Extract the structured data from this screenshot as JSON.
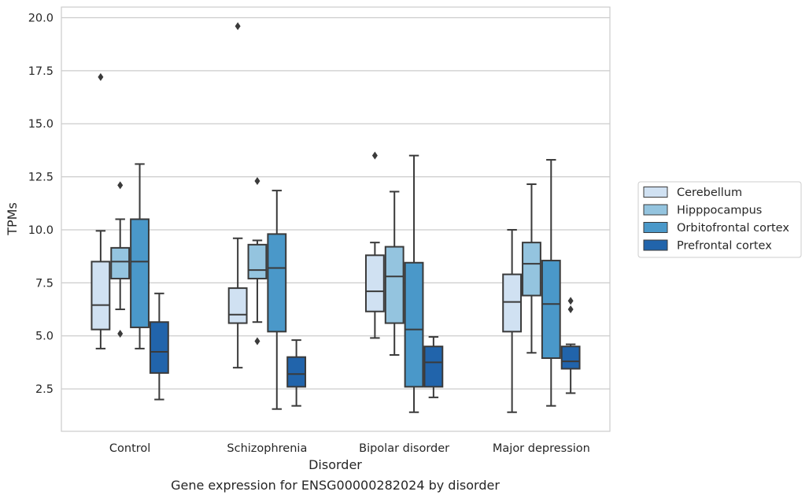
{
  "chart_data": {
    "type": "box",
    "caption": "Gene expression for ENSG00000282024 by disorder",
    "xlabel": "Disorder",
    "ylabel": "TPMs",
    "ylim": [
      0.5,
      20.5
    ],
    "yticks": [
      "2.5",
      "5.0",
      "7.5",
      "10.0",
      "12.5",
      "15.0",
      "17.5",
      "20.0"
    ],
    "grid": true,
    "legend_position": "right",
    "categories": [
      "Control",
      "Schizophrenia",
      "Bipolar disorder",
      "Major depression"
    ],
    "series": [
      {
        "name": "Cerebellum",
        "color": "#d0e1f2",
        "boxes": [
          {
            "min": 4.4,
            "q1": 5.3,
            "median": 6.45,
            "q3": 8.5,
            "max": 9.95,
            "outliers": [
              17.2
            ]
          },
          {
            "min": 3.5,
            "q1": 5.6,
            "median": 6.0,
            "q3": 7.25,
            "max": 9.6,
            "outliers": [
              19.6
            ]
          },
          {
            "min": 4.9,
            "q1": 6.15,
            "median": 7.1,
            "q3": 8.8,
            "max": 9.4,
            "outliers": [
              13.5
            ]
          },
          {
            "min": 1.4,
            "q1": 5.2,
            "median": 6.6,
            "q3": 7.9,
            "max": 10.0,
            "outliers": []
          }
        ]
      },
      {
        "name": "Hipppocampus",
        "color": "#94c4df",
        "boxes": [
          {
            "min": 6.25,
            "q1": 7.7,
            "median": 8.5,
            "q3": 9.15,
            "max": 10.5,
            "outliers": [
              12.1,
              5.1
            ]
          },
          {
            "min": 5.65,
            "q1": 7.7,
            "median": 8.1,
            "q3": 9.3,
            "max": 9.5,
            "outliers": [
              12.3,
              4.75
            ]
          },
          {
            "min": 4.1,
            "q1": 5.6,
            "median": 7.8,
            "q3": 9.2,
            "max": 11.8,
            "outliers": []
          },
          {
            "min": 4.2,
            "q1": 6.9,
            "median": 8.4,
            "q3": 9.4,
            "max": 12.15,
            "outliers": []
          }
        ]
      },
      {
        "name": "Orbitofrontal cortex",
        "color": "#4a98c9",
        "boxes": [
          {
            "min": 4.4,
            "q1": 5.4,
            "median": 8.5,
            "q3": 10.5,
            "max": 13.1,
            "outliers": []
          },
          {
            "min": 1.55,
            "q1": 5.2,
            "median": 8.2,
            "q3": 9.8,
            "max": 11.85,
            "outliers": []
          },
          {
            "min": 1.4,
            "q1": 2.6,
            "median": 5.3,
            "q3": 8.45,
            "max": 13.5,
            "outliers": []
          },
          {
            "min": 1.7,
            "q1": 3.95,
            "median": 6.5,
            "q3": 8.55,
            "max": 13.3,
            "outliers": []
          }
        ]
      },
      {
        "name": "Prefrontal cortex",
        "color": "#2164ab",
        "boxes": [
          {
            "min": 2.0,
            "q1": 3.25,
            "median": 4.25,
            "q3": 5.65,
            "max": 7.0,
            "outliers": []
          },
          {
            "min": 1.7,
            "q1": 2.6,
            "median": 3.2,
            "q3": 4.0,
            "max": 4.8,
            "outliers": []
          },
          {
            "min": 2.1,
            "q1": 2.6,
            "median": 3.75,
            "q3": 4.5,
            "max": 4.95,
            "outliers": []
          },
          {
            "min": 2.3,
            "q1": 3.45,
            "median": 3.8,
            "q3": 4.5,
            "max": 4.6,
            "outliers": [
              6.65,
              6.25
            ]
          }
        ]
      }
    ]
  }
}
